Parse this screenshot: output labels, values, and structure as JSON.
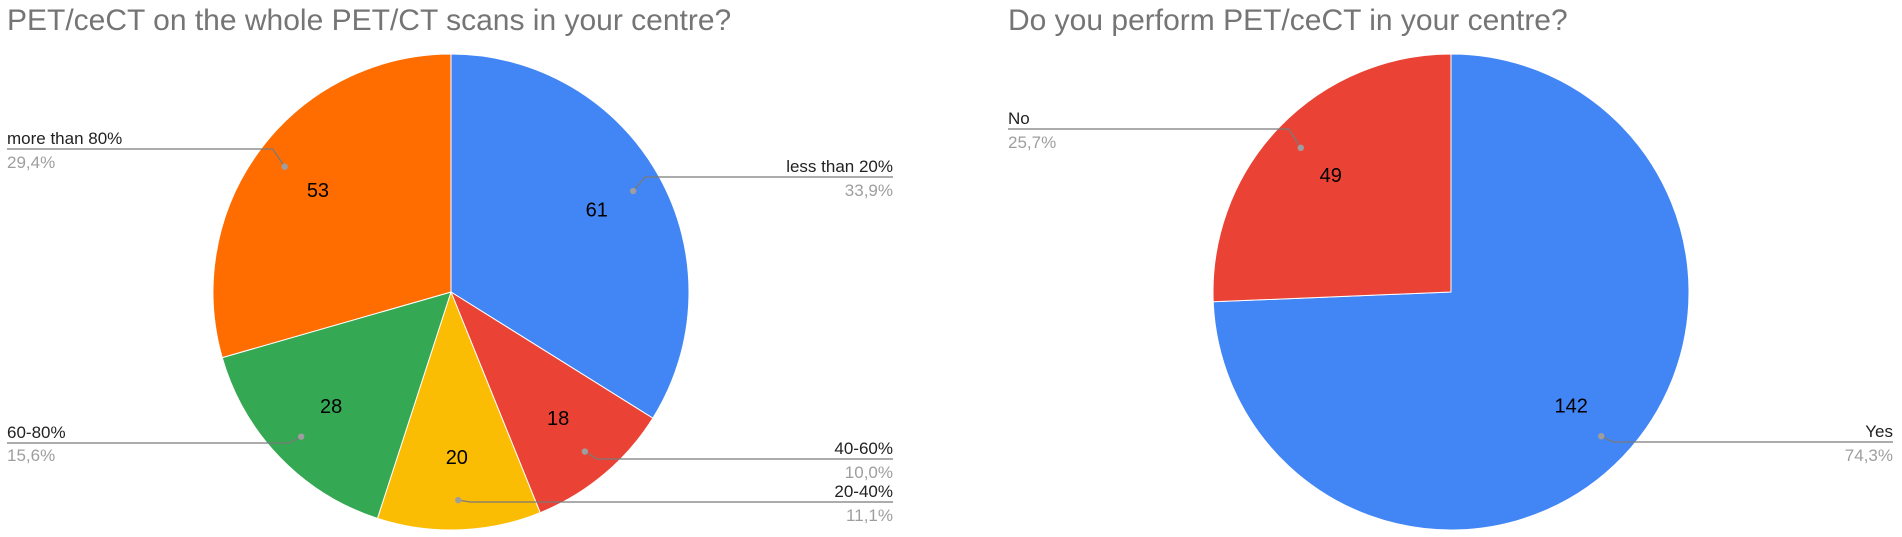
{
  "chart_data": [
    {
      "type": "pie",
      "title": "PET/ceCT on the whole PET/CT scans in your centre?",
      "slices": [
        {
          "label": "less than 20%",
          "value": 61,
          "percent_label": "33,9%",
          "color": "#4285F4"
        },
        {
          "label": "40-60%",
          "value": 18,
          "percent_label": "10,0%",
          "color": "#EA4335"
        },
        {
          "label": "20-40%",
          "value": 20,
          "percent_label": "11,1%",
          "color": "#FBBC04"
        },
        {
          "label": "60-80%",
          "value": 28,
          "percent_label": "15,6%",
          "color": "#34A853"
        },
        {
          "label": "more than 80%",
          "value": 53,
          "percent_label": "29,4%",
          "color": "#FF6D01"
        }
      ]
    },
    {
      "type": "pie",
      "title": "Do you perform PET/ceCT in your centre?",
      "slices": [
        {
          "label": "Yes",
          "value": 142,
          "percent_label": "74,3%",
          "color": "#4285F4"
        },
        {
          "label": "No",
          "value": 49,
          "percent_label": "25,7%",
          "color": "#EA4335"
        }
      ]
    }
  ]
}
